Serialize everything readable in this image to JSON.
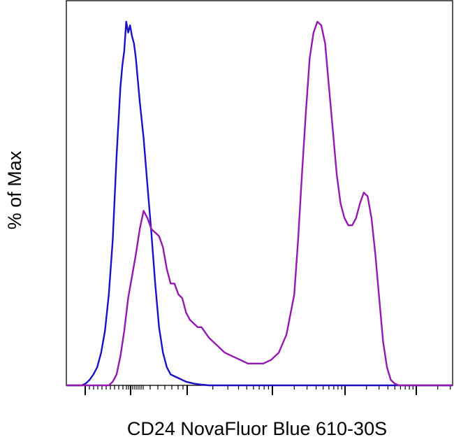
{
  "chart_data": {
    "type": "line",
    "title": "",
    "xlabel": "CD24 NovaFluor Blue 610-30S",
    "ylabel": "% of Max",
    "x_scale": "biexponential",
    "xlim": [
      0,
      100
    ],
    "ylim": [
      0,
      100
    ],
    "tick_labels_shown": false,
    "grid": false,
    "legend": "none",
    "series": [
      {
        "color": "#1a10c8",
        "x": [
          0,
          4,
          5,
          6,
          7,
          8,
          9,
          10,
          11,
          12,
          13,
          14,
          14.5,
          15,
          15.5,
          16,
          16.5,
          17,
          17.5,
          18,
          18.5,
          19,
          20,
          21,
          22,
          23,
          24,
          25,
          26,
          27,
          28,
          29,
          30,
          31,
          33,
          35,
          37,
          100
        ],
        "y": [
          0,
          0,
          0.5,
          1.5,
          3,
          5,
          9,
          15,
          25,
          40,
          63,
          82,
          88,
          92,
          100,
          97,
          99,
          96,
          94,
          90,
          84,
          78,
          68,
          55,
          42,
          28,
          16,
          9,
          5,
          3,
          2.5,
          2,
          1.5,
          1,
          0.5,
          0.2,
          0,
          0
        ]
      },
      {
        "color": "#9418b0",
        "x": [
          0,
          11,
          12,
          13,
          14,
          15,
          16,
          17,
          18,
          19,
          20,
          21,
          22,
          23,
          24,
          25,
          26,
          27,
          28,
          29,
          30,
          31,
          32,
          33,
          34,
          35,
          37,
          39,
          41,
          43,
          45,
          47,
          49,
          51,
          53,
          55,
          57,
          59,
          60,
          61,
          62,
          63,
          64,
          65,
          66,
          67,
          68,
          69,
          70,
          71,
          72,
          73,
          74,
          75,
          76,
          77,
          78,
          79,
          80,
          81,
          82,
          83,
          84,
          85,
          86,
          87,
          88,
          100
        ],
        "y": [
          0,
          0,
          1,
          3,
          8,
          15,
          24,
          30,
          36,
          43,
          48,
          46,
          43,
          42,
          41,
          38,
          32,
          28,
          28,
          25,
          24,
          20,
          18,
          17,
          16,
          16,
          13,
          11,
          9,
          8,
          7,
          6,
          6,
          6,
          7,
          9,
          14,
          25,
          40,
          58,
          75,
          90,
          97,
          100,
          99,
          94,
          82,
          70,
          58,
          50,
          46,
          44,
          44,
          46,
          50,
          53,
          52,
          46,
          36,
          24,
          12,
          5,
          1.5,
          0.5,
          0,
          0,
          0,
          0
        ]
      }
    ]
  }
}
